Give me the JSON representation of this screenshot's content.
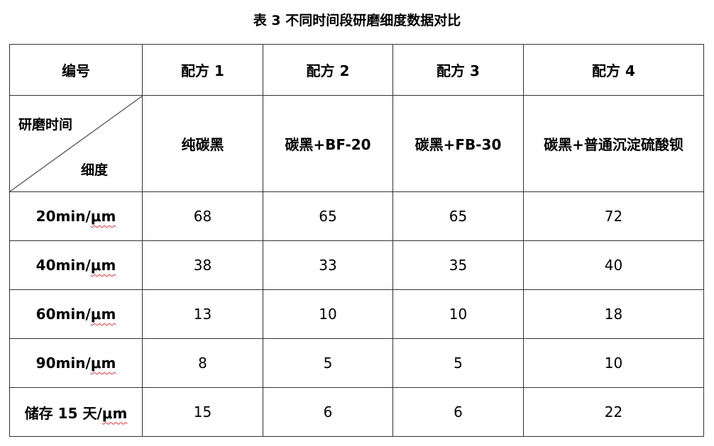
{
  "title": "表 3  不同时间段研磨细度数据对比",
  "header": {
    "id_label": "编号",
    "formulas": [
      "配方 1",
      "配方 2",
      "配方 3",
      "配方 4"
    ]
  },
  "subheader": {
    "diag_top": "研磨时间",
    "diag_bottom": "细度",
    "compositions": [
      "纯碳黑",
      "碳黑+BF-20",
      "碳黑+FB-30",
      "碳黑+普通沉淀硫酸钡"
    ]
  },
  "rows": [
    {
      "label": "20min/",
      "unit": "μm",
      "values": [
        "68",
        "65",
        "65",
        "72"
      ]
    },
    {
      "label": "40min/",
      "unit": "μm",
      "values": [
        "38",
        "33",
        "35",
        "40"
      ]
    },
    {
      "label": "60min/",
      "unit": "μm",
      "values": [
        "13",
        "10",
        "10",
        "18"
      ]
    },
    {
      "label": "90min/",
      "unit": "μm",
      "values": [
        "8",
        "5",
        "5",
        "10"
      ]
    },
    {
      "label": "储存 15 天/",
      "unit": "μm",
      "values": [
        "15",
        "6",
        "6",
        "22"
      ]
    }
  ]
}
